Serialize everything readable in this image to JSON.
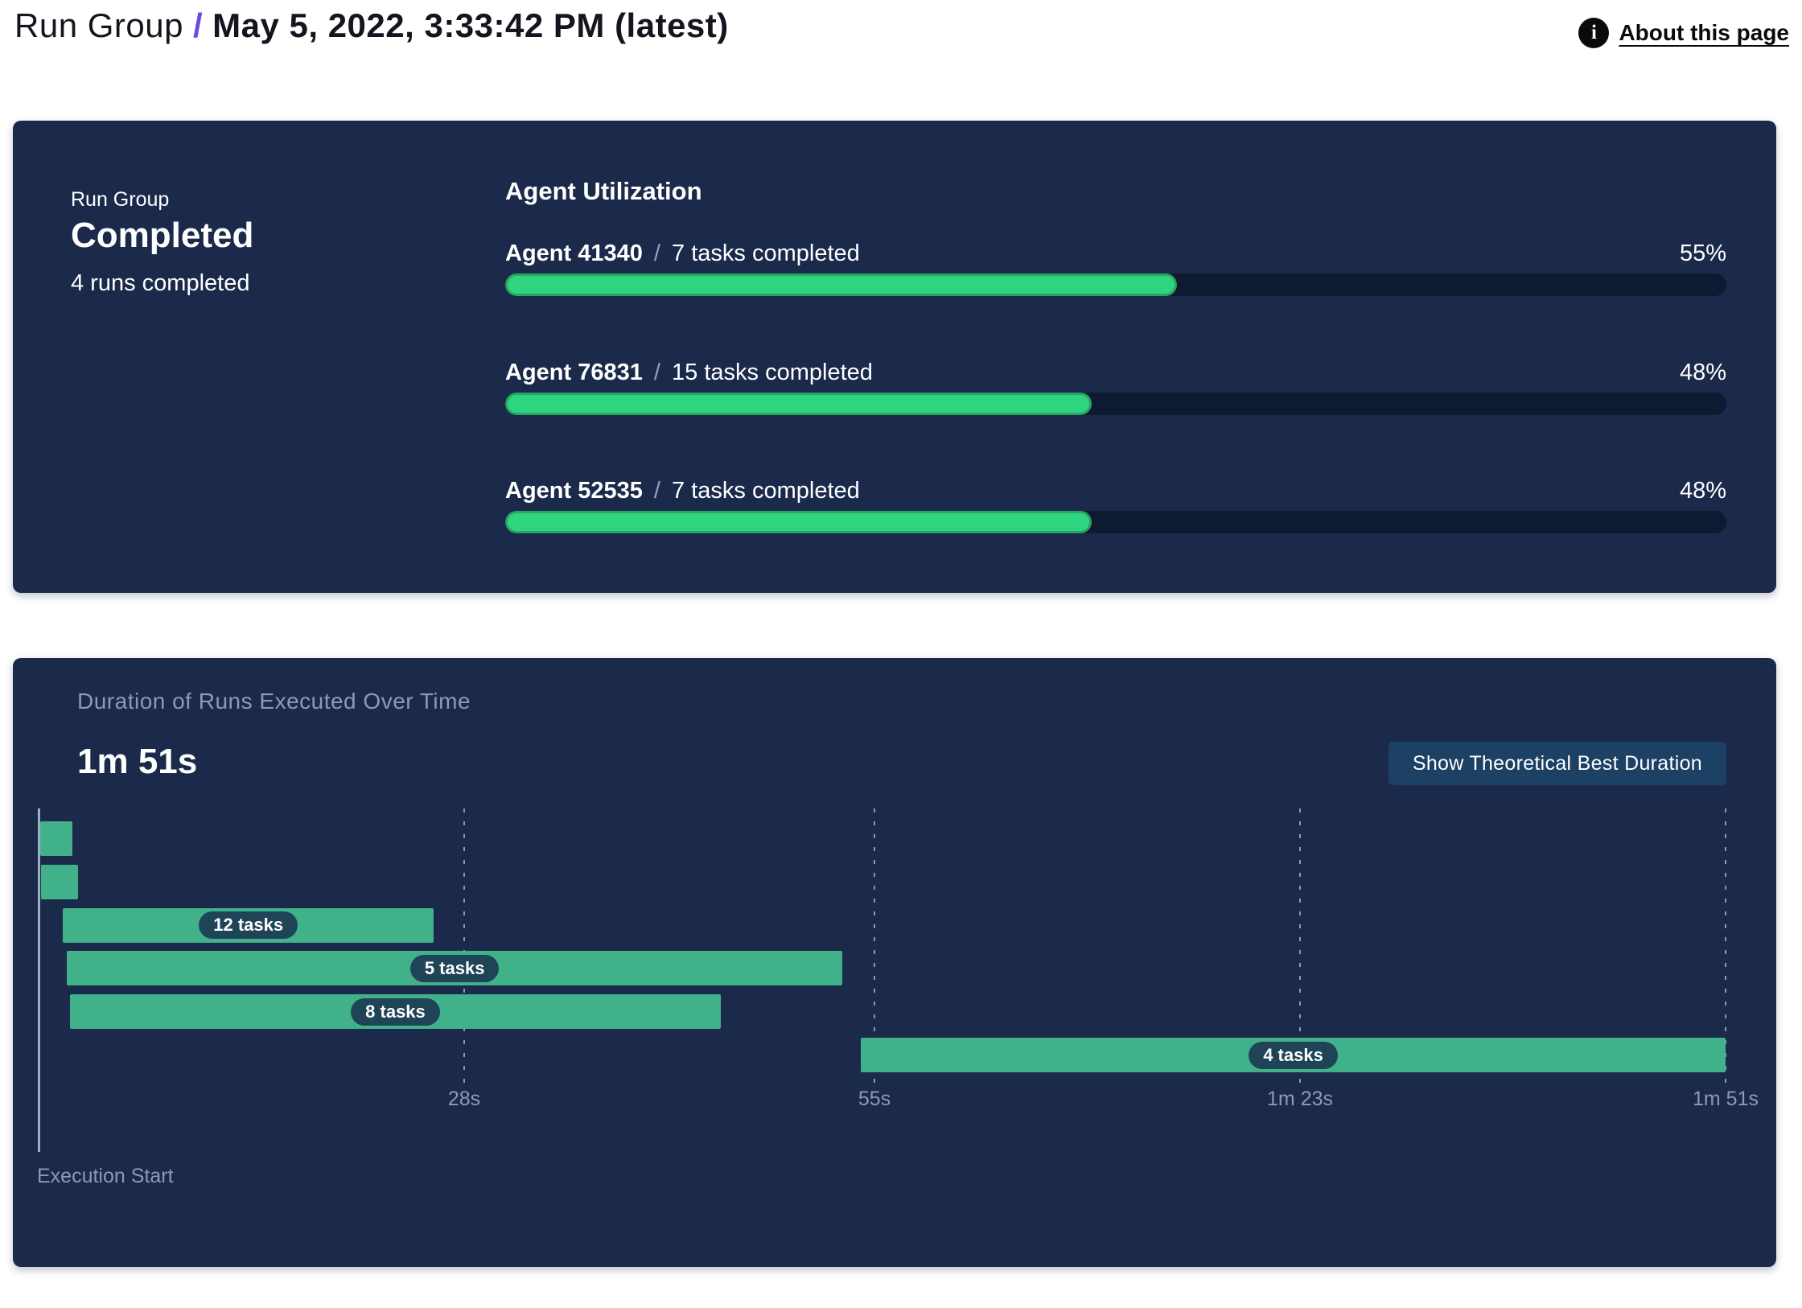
{
  "header": {
    "breadcrumb_primary": "Run Group",
    "separator": "/",
    "breadcrumb_current": "May 5, 2022, 3:33:42 PM (latest)",
    "about_link": "About this page",
    "info_icon_glyph": "i"
  },
  "colors": {
    "accent_purple": "#6d49e3",
    "panel_navy": "#1b2a4b",
    "progress_track": "#0d1a31",
    "progress_fill": "#2fd57e",
    "progress_fill_border": "#2aa463",
    "gantt_bar_green": "#41b18a",
    "pill_background": "#204457",
    "button_background": "#1d4065",
    "muted_text": "#8d9ab0"
  },
  "summary_panel": {
    "group_label": "Run Group",
    "status": "Completed",
    "runs_summary": "4 runs completed",
    "utilization_title": "Agent Utilization",
    "agent_separator": "/",
    "agents": [
      {
        "name": "Agent 41340",
        "tasks": "7 tasks completed",
        "percent": "55%",
        "percent_value": 55
      },
      {
        "name": "Agent 76831",
        "tasks": "15 tasks completed",
        "percent": "48%",
        "percent_value": 48
      },
      {
        "name": "Agent 52535",
        "tasks": "7 tasks completed",
        "percent": "48%",
        "percent_value": 48
      }
    ]
  },
  "duration_panel": {
    "title": "Duration of Runs Executed Over Time",
    "total_duration": "1m 51s",
    "button_label": "Show Theoretical Best Duration",
    "execution_start_label": "Execution Start"
  },
  "chart_data": {
    "type": "gantt",
    "title": "Duration of Runs Executed Over Time",
    "xlabel": "Execution Start",
    "x_range_s": [
      0,
      111
    ],
    "total_duration_label": "1m 51s",
    "grid": "dashed-vertical",
    "x_ticks": [
      {
        "label": "28s",
        "seconds": 28
      },
      {
        "label": "55s",
        "seconds": 55
      },
      {
        "label": "1m 23s",
        "seconds": 83
      },
      {
        "label": "1m 51s",
        "seconds": 111
      }
    ],
    "bars": [
      {
        "row": 1,
        "start_s": 0.1,
        "end_s": 2.2,
        "label": null
      },
      {
        "row": 2,
        "start_s": 0.15,
        "end_s": 2.6,
        "label": null
      },
      {
        "row": 3,
        "start_s": 1.6,
        "end_s": 26.0,
        "label": "12 tasks"
      },
      {
        "row": 4,
        "start_s": 1.85,
        "end_s": 52.9,
        "label": "5 tasks"
      },
      {
        "row": 5,
        "start_s": 2.05,
        "end_s": 44.9,
        "label": "8 tasks"
      },
      {
        "row": 6,
        "start_s": 54.1,
        "end_s": 111,
        "label": "4 tasks"
      }
    ]
  }
}
